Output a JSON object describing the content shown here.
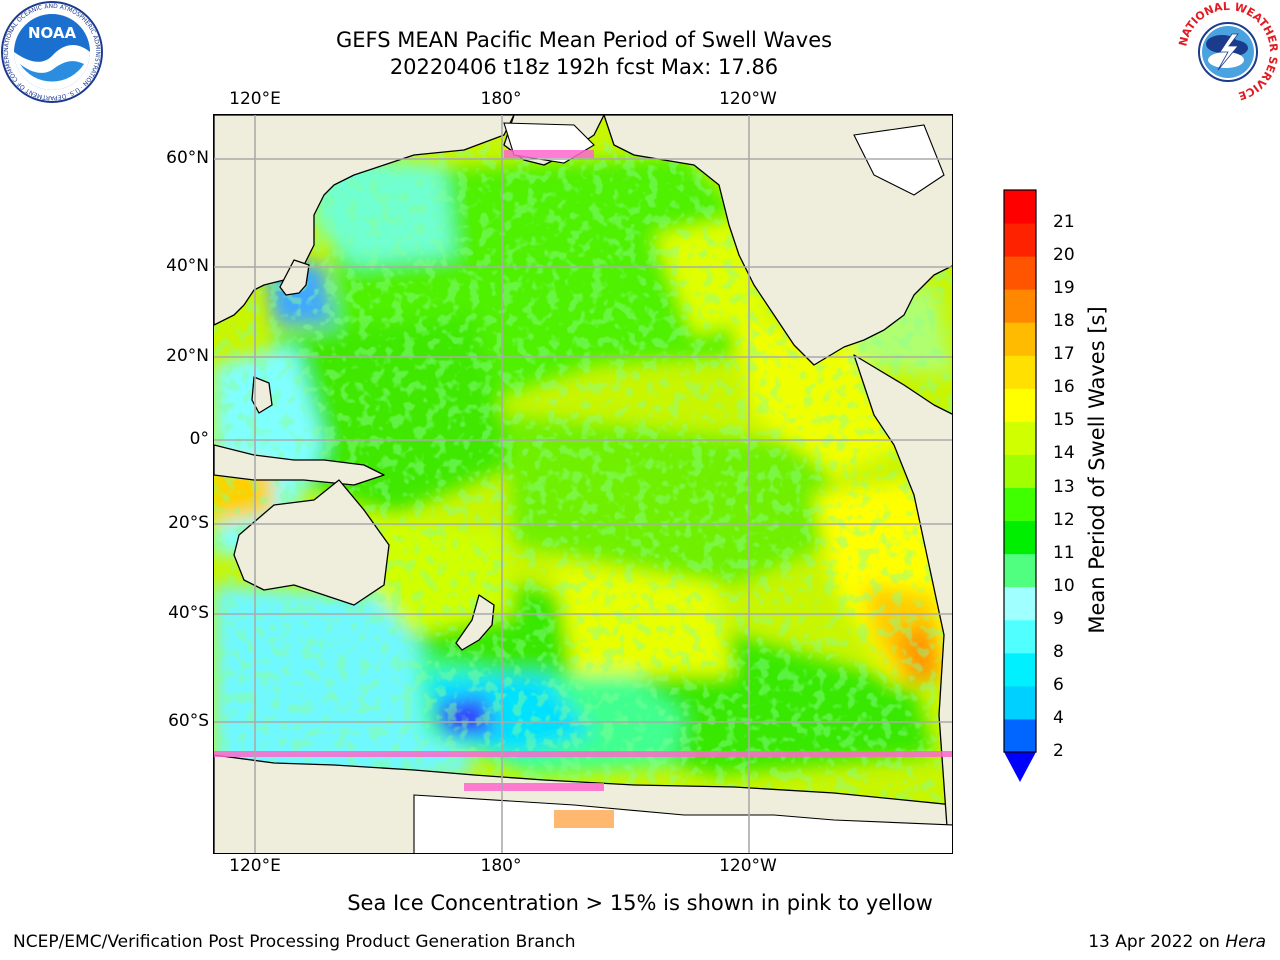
{
  "title": {
    "line1": "GEFS MEAN Pacific Mean Period of Swell Waves",
    "line2": "20220406 t18z 192h fcst   Max: 17.86"
  },
  "axes": {
    "lon_labels": [
      "120°E",
      "180°",
      "120°W"
    ],
    "lat_labels": [
      "60°N",
      "40°N",
      "20°N",
      "0°",
      "20°S",
      "40°S",
      "60°S"
    ]
  },
  "colorbar": {
    "label": "Mean Period of Swell Waves [s]",
    "ticks": [
      "2",
      "4",
      "6",
      "8",
      "9",
      "10",
      "11",
      "12",
      "13",
      "14",
      "15",
      "16",
      "17",
      "18",
      "19",
      "20",
      "21"
    ],
    "colors": [
      "#0066ff",
      "#00d0ff",
      "#00f0ff",
      "#50ffff",
      "#a0ffff",
      "#50ff80",
      "#00ee00",
      "#40ff00",
      "#a0ff00",
      "#d0ff00",
      "#ffff00",
      "#ffe000",
      "#ffbb00",
      "#ff8800",
      "#ff5500",
      "#ff2200",
      "#ff0000"
    ],
    "extend_color": "#0000ff"
  },
  "logos": {
    "noaa_text": "NOAA",
    "noaa_ring": "NATIONAL OCEANIC AND ATMOSPHERIC ADMINISTRATION · U.S. DEPARTMENT OF COMMERCE",
    "nws_ring": "NATIONAL WEATHER SERVICE"
  },
  "footer": {
    "note": "Sea Ice Concentration > 15% is shown in pink to yellow",
    "left": "NCEP/EMC/Verification Post Processing Product Generation Branch",
    "right_date": "13 Apr 2022 on ",
    "right_host": "Hera"
  }
}
